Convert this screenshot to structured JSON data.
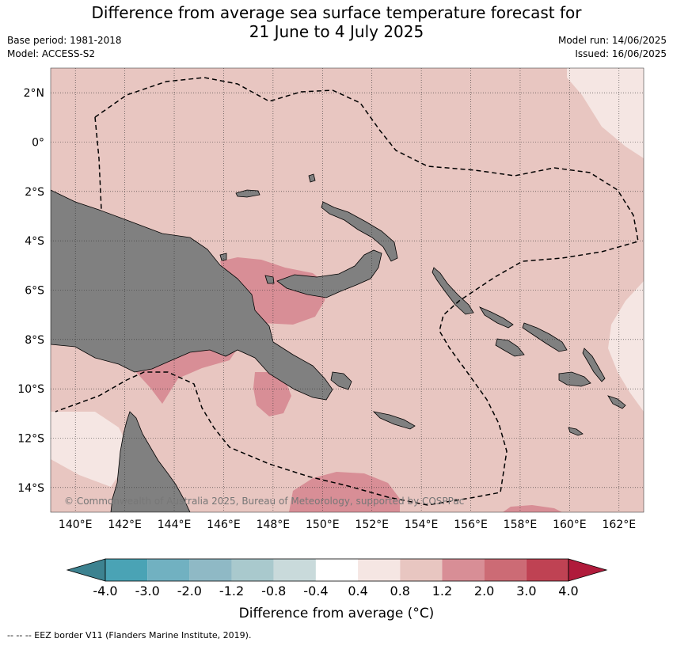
{
  "title": {
    "line1": "Difference from average sea surface temperature forecast for",
    "line2": "21 June to 4 July 2025"
  },
  "meta": {
    "base_period": "Base period: 1981-2018",
    "model": "Model: ACCESS-S2",
    "model_run": "Model run: 14/06/2025",
    "issued": "Issued: 16/06/2025"
  },
  "map": {
    "extent": {
      "lon_min": 139,
      "lon_max": 163,
      "lat_min": -15,
      "lat_max": 3
    },
    "lat_ticks": [
      {
        "value": 2,
        "label": "2°N"
      },
      {
        "value": 0,
        "label": "0°"
      },
      {
        "value": -2,
        "label": "2°S"
      },
      {
        "value": -4,
        "label": "4°S"
      },
      {
        "value": -6,
        "label": "6°S"
      },
      {
        "value": -8,
        "label": "8°S"
      },
      {
        "value": -10,
        "label": "10°S"
      },
      {
        "value": -12,
        "label": "12°S"
      },
      {
        "value": -14,
        "label": "14°S"
      }
    ],
    "lon_ticks": [
      {
        "value": 140,
        "label": "140°E"
      },
      {
        "value": 142,
        "label": "142°E"
      },
      {
        "value": 144,
        "label": "144°E"
      },
      {
        "value": 146,
        "label": "146°E"
      },
      {
        "value": 148,
        "label": "148°E"
      },
      {
        "value": 150,
        "label": "150°E"
      },
      {
        "value": 152,
        "label": "152°E"
      },
      {
        "value": 154,
        "label": "154°E"
      },
      {
        "value": 156,
        "label": "156°E"
      },
      {
        "value": 158,
        "label": "158°E"
      },
      {
        "value": 160,
        "label": "160°E"
      },
      {
        "value": 162,
        "label": "162°E"
      }
    ],
    "copyright": "© Commonwealth of Australia 2025, Bureau of Meteorology, supported by COSPPac",
    "land_color": "#808080",
    "base_anomaly_color": "#e8c6c1"
  },
  "colorbar": {
    "tick_labels": [
      "-4.0",
      "-3.0",
      "-2.0",
      "-1.2",
      "-0.8",
      "-0.4",
      "0.4",
      "0.8",
      "1.2",
      "2.0",
      "3.0",
      "4.0"
    ],
    "colors": [
      "#3d8290",
      "#4aa3b5",
      "#71b1c1",
      "#8fb9c5",
      "#a9c9cd",
      "#c9dadb",
      "#ffffff",
      "#f5e6e3",
      "#e8c6c1",
      "#d88e96",
      "#cc6b75",
      "#bf4253",
      "#b01b3b"
    ],
    "label": "Difference from average (",
    "label_unit": "°C)"
  },
  "footnote": "--  --  -- EEZ border V11 (Flanders Marine Institute, 2019)."
}
